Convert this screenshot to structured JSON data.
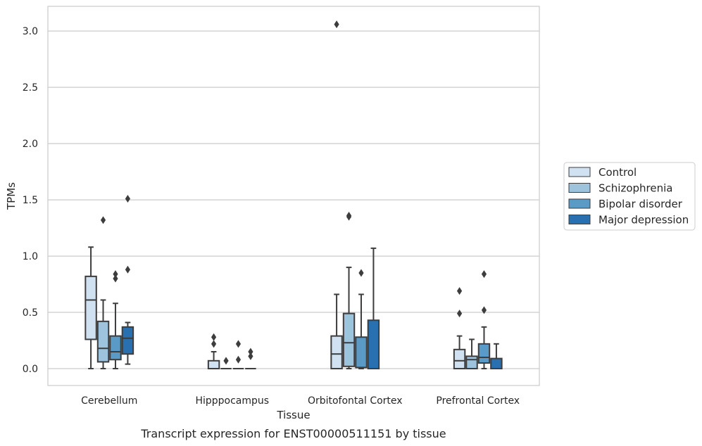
{
  "caption": "Transcript expression for ENST00000511151 by tissue",
  "chart_data": {
    "type": "boxplot",
    "xlabel": "Tissue",
    "ylabel": "TPMs",
    "ylim": [
      -0.15,
      3.22
    ],
    "yticks": [
      0.0,
      0.5,
      1.0,
      1.5,
      2.0,
      2.5,
      3.0
    ],
    "ytick_labels": [
      "0.0",
      "0.5",
      "1.0",
      "1.5",
      "2.0",
      "2.5",
      "3.0"
    ],
    "grid": "horizontal",
    "legend_position": "right",
    "categories": [
      "Cerebellum",
      "Hipppocampus",
      "Orbitofontal Cortex",
      "Prefrontal Cortex"
    ],
    "series": [
      {
        "name": "Control",
        "color": "#d0e1f1",
        "boxes": [
          {
            "whislo": 0.0,
            "q1": 0.26,
            "med": 0.61,
            "q3": 0.82,
            "whishi": 1.08,
            "fliers": []
          },
          {
            "whislo": 0.0,
            "q1": 0.0,
            "med": 0.0,
            "q3": 0.07,
            "whishi": 0.15,
            "fliers": [
              0.22,
              0.28
            ]
          },
          {
            "whislo": 0.0,
            "q1": 0.0,
            "med": 0.13,
            "q3": 0.29,
            "whishi": 0.66,
            "fliers": [
              3.06
            ]
          },
          {
            "whislo": 0.0,
            "q1": 0.0,
            "med": 0.07,
            "q3": 0.17,
            "whishi": 0.29,
            "fliers": [
              0.49,
              0.69
            ]
          }
        ]
      },
      {
        "name": "Schizophrenia",
        "color": "#9dc3dd",
        "boxes": [
          {
            "whislo": 0.0,
            "q1": 0.06,
            "med": 0.18,
            "q3": 0.42,
            "whishi": 0.61,
            "fliers": [
              1.32
            ]
          },
          {
            "whislo": 0.0,
            "q1": 0.0,
            "med": 0.0,
            "q3": 0.0,
            "whishi": 0.0,
            "fliers": [
              0.07
            ]
          },
          {
            "whislo": 0.0,
            "q1": 0.02,
            "med": 0.23,
            "q3": 0.49,
            "whishi": 0.9,
            "fliers": [
              1.35,
              1.36
            ]
          },
          {
            "whislo": 0.0,
            "q1": 0.0,
            "med": 0.08,
            "q3": 0.11,
            "whishi": 0.26,
            "fliers": []
          }
        ]
      },
      {
        "name": "Bipolar disorder",
        "color": "#5a9ac6",
        "boxes": [
          {
            "whislo": 0.0,
            "q1": 0.08,
            "med": 0.15,
            "q3": 0.29,
            "whishi": 0.58,
            "fliers": [
              0.8,
              0.84
            ]
          },
          {
            "whislo": 0.0,
            "q1": 0.0,
            "med": 0.0,
            "q3": 0.0,
            "whishi": 0.0,
            "fliers": [
              0.08,
              0.22
            ]
          },
          {
            "whislo": 0.0,
            "q1": 0.01,
            "med": 0.01,
            "q3": 0.28,
            "whishi": 0.66,
            "fliers": [
              0.85
            ]
          },
          {
            "whislo": 0.0,
            "q1": 0.05,
            "med": 0.1,
            "q3": 0.22,
            "whishi": 0.37,
            "fliers": [
              0.52,
              0.84
            ]
          }
        ]
      },
      {
        "name": "Major depression",
        "color": "#2970b0",
        "boxes": [
          {
            "whislo": 0.04,
            "q1": 0.13,
            "med": 0.27,
            "q3": 0.37,
            "whishi": 0.41,
            "fliers": [
              0.88,
              1.51
            ]
          },
          {
            "whislo": 0.0,
            "q1": 0.0,
            "med": 0.0,
            "q3": 0.0,
            "whishi": 0.0,
            "fliers": [
              0.11,
              0.15
            ]
          },
          {
            "whislo": 0.0,
            "q1": 0.0,
            "med": 0.0,
            "q3": 0.43,
            "whishi": 1.07,
            "fliers": []
          },
          {
            "whislo": 0.0,
            "q1": 0.0,
            "med": 0.0,
            "q3": 0.09,
            "whishi": 0.22,
            "fliers": []
          }
        ]
      }
    ]
  }
}
